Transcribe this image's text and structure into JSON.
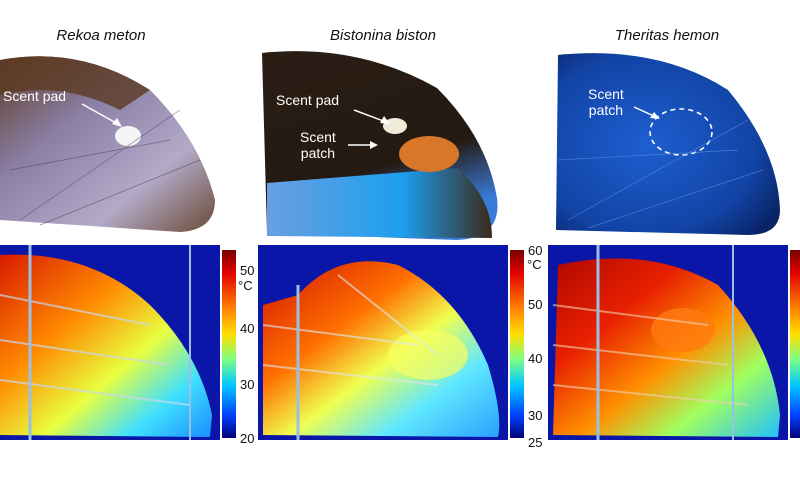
{
  "species": [
    {
      "name": "Rekoa meton"
    },
    {
      "name": "Bistonina biston"
    },
    {
      "name": "Theritas hemon"
    }
  ],
  "annotations": {
    "rekoa_scent_pad": "Scent pad",
    "bistonina_scent_pad": "Scent pad",
    "bistonina_scent_patch_line1": "Scent",
    "bistonina_scent_patch_line2": "patch",
    "theritas_scent_patch_line1": "Scent",
    "theritas_scent_patch_line2": "patch"
  },
  "colorbars": [
    {
      "unit": "°C",
      "ticks": [
        "50",
        "40",
        "30",
        "20"
      ]
    },
    {
      "unit": "°C",
      "ticks": [
        "60",
        "50",
        "40",
        "30",
        "25"
      ]
    }
  ],
  "colors": {
    "rekoa_wing": "#8a7fa8",
    "bistonina_wing": "#2a1d14",
    "theritas_wing": "#1a4fb8",
    "thermal_background": "#0a16a8"
  }
}
